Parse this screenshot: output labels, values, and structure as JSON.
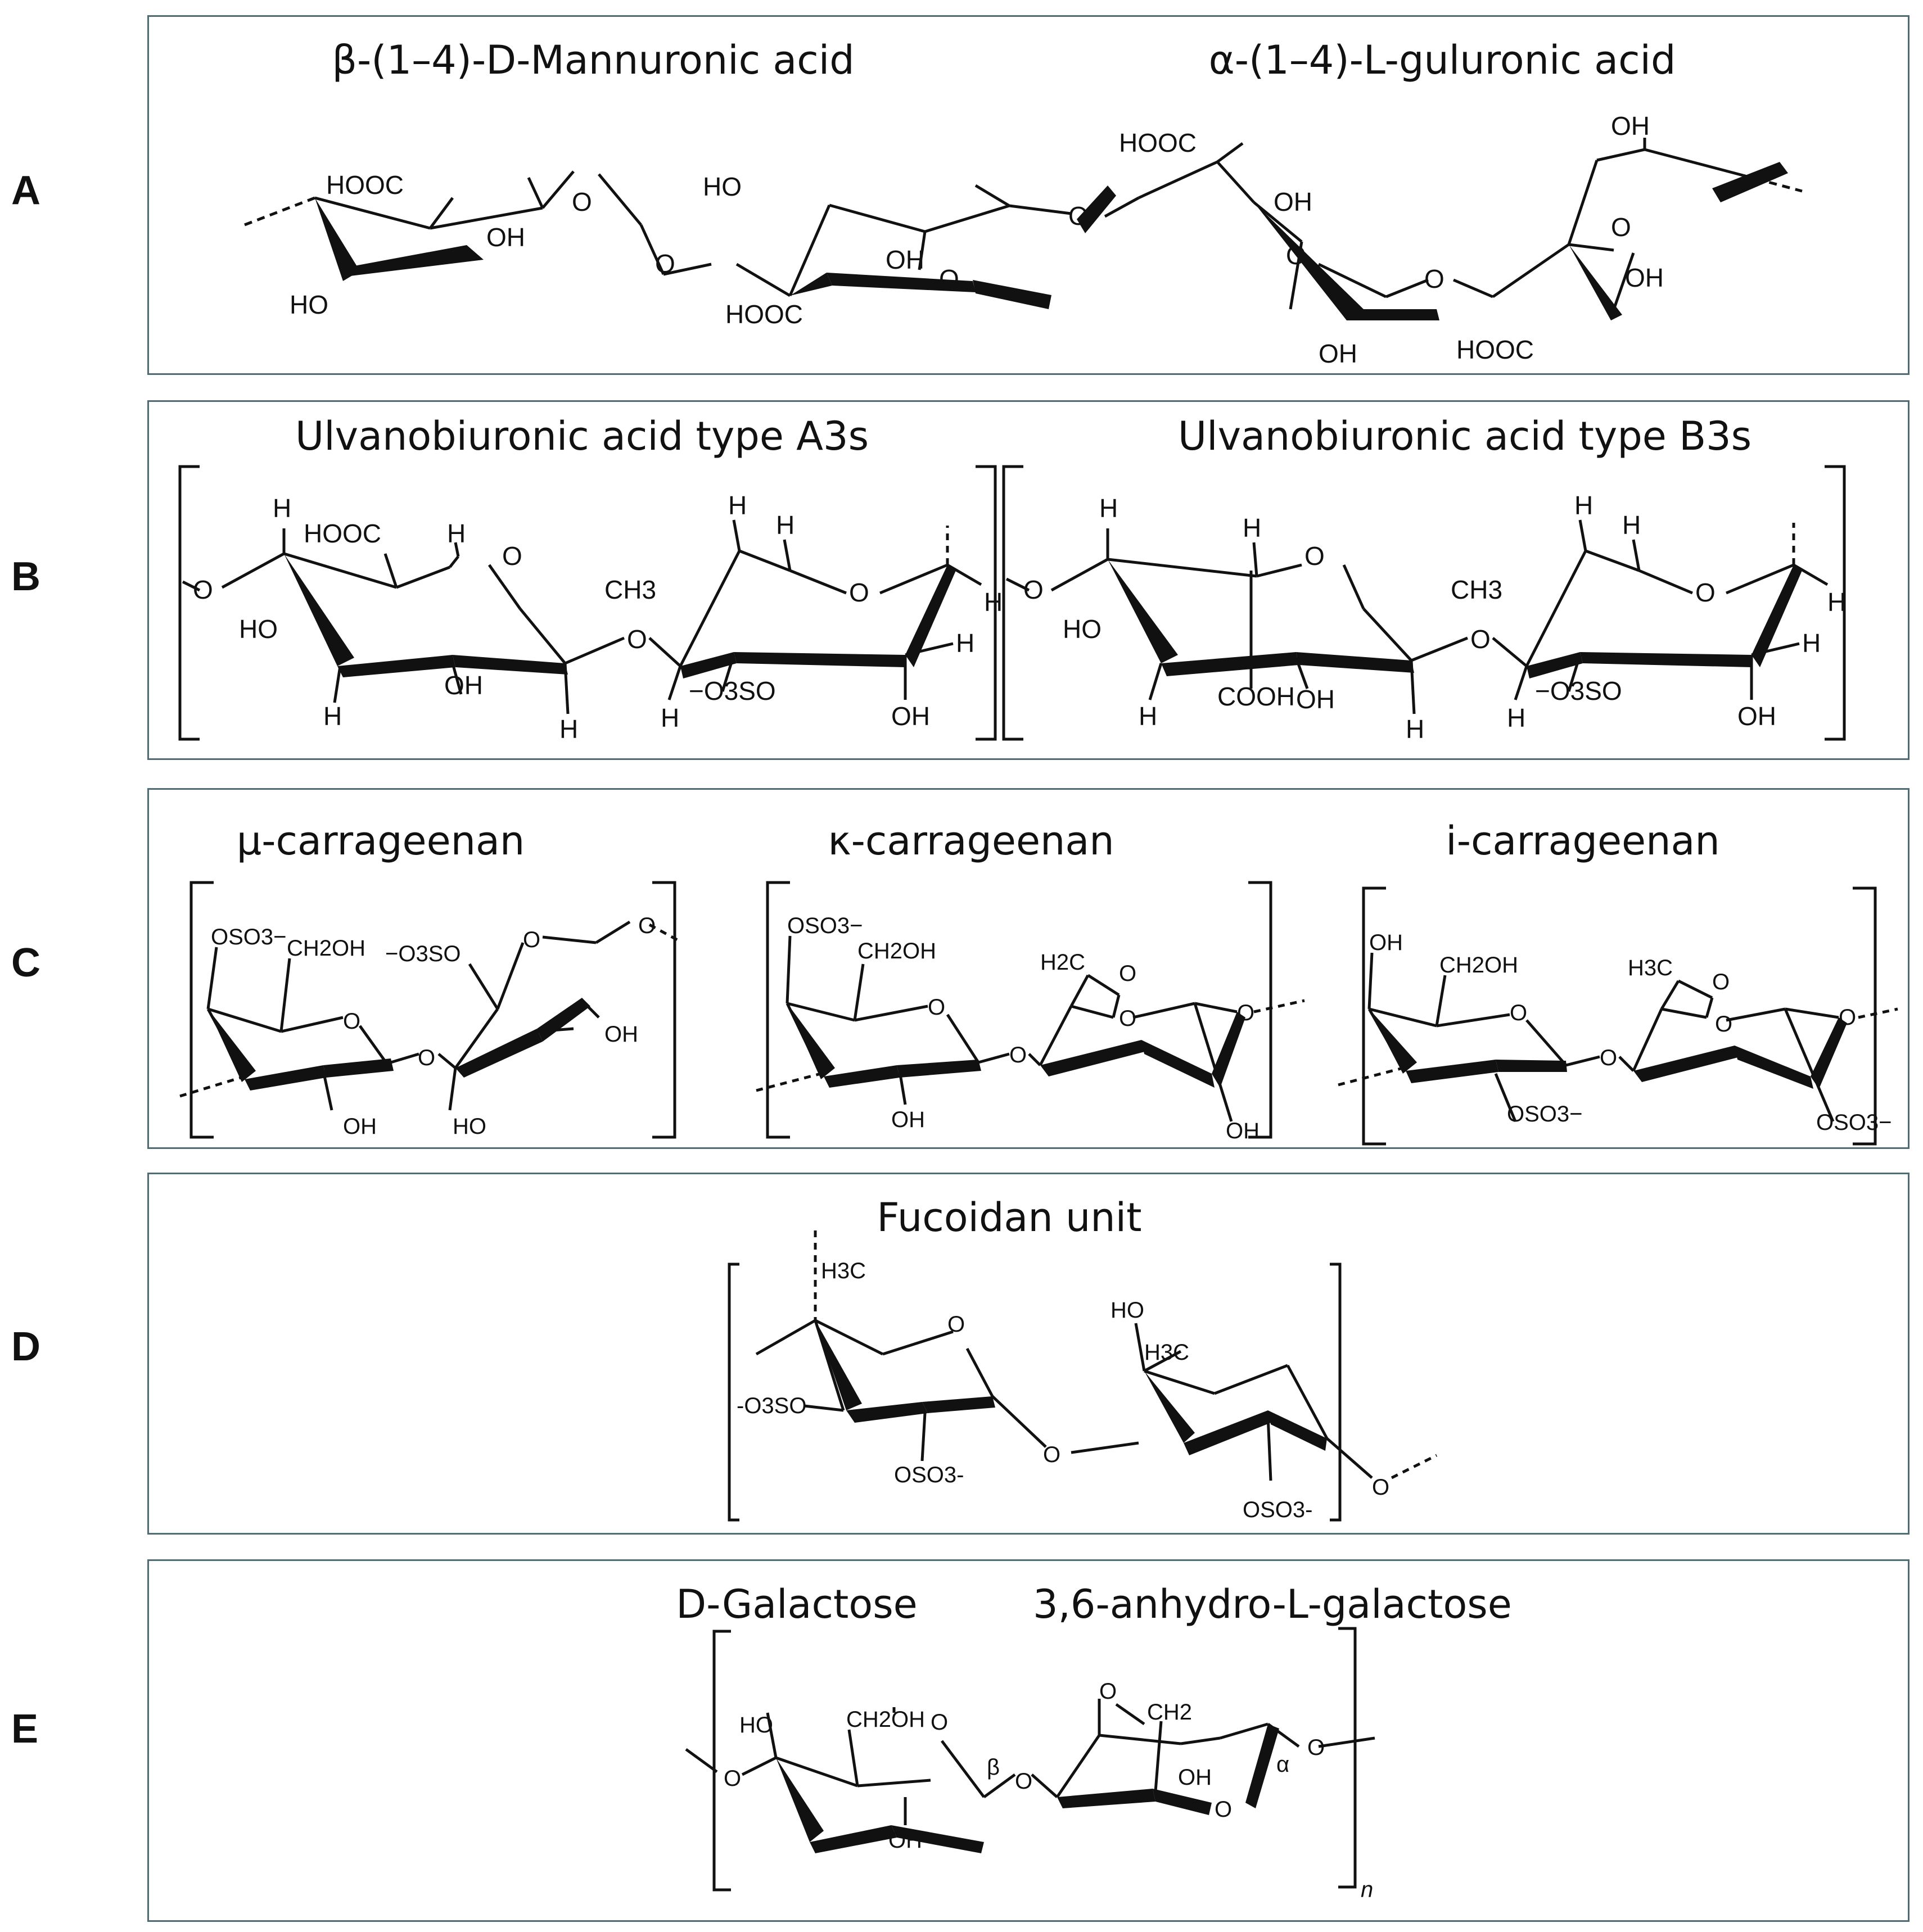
{
  "panels": [
    {
      "letter": "A",
      "titles": [
        "β-(1–4)-D-Mannuronic acid",
        "α-(1–4)-L-guluronic acid"
      ],
      "labels": {
        "hooc1": "HOOC",
        "o1": "O",
        "oh1": "OH",
        "ho1": "HO",
        "olink1": "O",
        "ho2": "HO",
        "oh2": "OH",
        "o2": "O",
        "hooc2": "HOOC",
        "olink2": "O",
        "hooc3": "HOOC",
        "oh3": "OH",
        "o3": "O",
        "oh3b": "OH",
        "olink3": "O",
        "oh4": "OH",
        "o4": "O",
        "oh4b": "OH",
        "hooc4": "HOOC"
      }
    },
    {
      "letter": "B",
      "titles": [
        "Ulvanobiuronic acid type A3s",
        "Ulvanobiuronic acid type B3s"
      ],
      "labels": {
        "a_o_left": "O",
        "a_h1": "H",
        "a_hooc": "HOOC",
        "a_h2": "H",
        "a_o_ring": "O",
        "a_ho": "HO",
        "a_h3": "H",
        "a_oh": "OH",
        "a_h4": "H",
        "a_olink": "O",
        "a_ch3": "CH3",
        "a_h5": "H",
        "a_h6": "H",
        "a_o_ring2": "O",
        "a_h7": "H",
        "a_h8": "H",
        "a_so3": "−O3SO",
        "a_h9": "H",
        "a_oh2": "OH",
        "b_o_left": "O",
        "b_h1": "H",
        "b_h2": "H",
        "b_o_ring": "O",
        "b_ho": "HO",
        "b_h3": "H",
        "b_cooh": "COOH",
        "b_oh": "OH",
        "b_h4": "H",
        "b_olink": "O",
        "b_ch3": "CH3",
        "b_h5": "H",
        "b_h6": "H",
        "b_o_ring2": "O",
        "b_h7": "H",
        "b_h8": "H",
        "b_so3": "−O3SO",
        "b_h9": "H",
        "b_oh2": "OH"
      }
    },
    {
      "letter": "C",
      "titles": [
        "μ-carrageenan",
        "κ-carrageenan",
        "i-carrageenan"
      ],
      "labels": {
        "mu_oso3": "OSO3−",
        "mu_ch2oh": "CH2OH",
        "mu_so3": "−O3SO",
        "mu_o1": "O",
        "mu_o2": "O",
        "mu_o3": "O",
        "mu_oh1": "OH",
        "mu_oh2": "OH",
        "mu_ho": "HO",
        "k_oso3": "OSO3−",
        "k_ch2oh": "CH2OH",
        "k_o1": "O",
        "k_h2c": "H2C",
        "k_o2": "O",
        "k_o3": "O",
        "k_o4": "O",
        "k_olink": "O",
        "k_oh1": "OH",
        "k_oh2": "OH",
        "i_oh": "OH",
        "i_ch2oh": "CH2OH",
        "i_o1": "O",
        "i_h3c": "H3C",
        "i_o2": "O",
        "i_o3": "O",
        "i_o4": "O",
        "i_olink": "O",
        "i_oso3a": "OSO3−",
        "i_oso3b": "OSO3−"
      }
    },
    {
      "letter": "D",
      "titles": [
        "Fucoidan unit"
      ],
      "labels": {
        "h3c1": "H3C",
        "o1": "O",
        "so3": "-O3SO",
        "oso3a": "OSO3-",
        "olink": "O",
        "ho": "HO",
        "h3c2": "H3C",
        "oso3b": "OSO3-",
        "o2": "O"
      }
    },
    {
      "letter": "E",
      "titles": [
        "D-Galactose",
        "3,6-anhydro-L-galactose"
      ],
      "labels": {
        "ho": "HO",
        "ch2oh": "CH2OH",
        "o1": "O",
        "o_left": "O",
        "beta": "β",
        "oh1": "OH",
        "olink": "O",
        "o2": "O",
        "ch2": "CH2",
        "oh2": "OH",
        "o3": "O",
        "alpha": "α",
        "o4": "O",
        "n": "n"
      }
    }
  ]
}
